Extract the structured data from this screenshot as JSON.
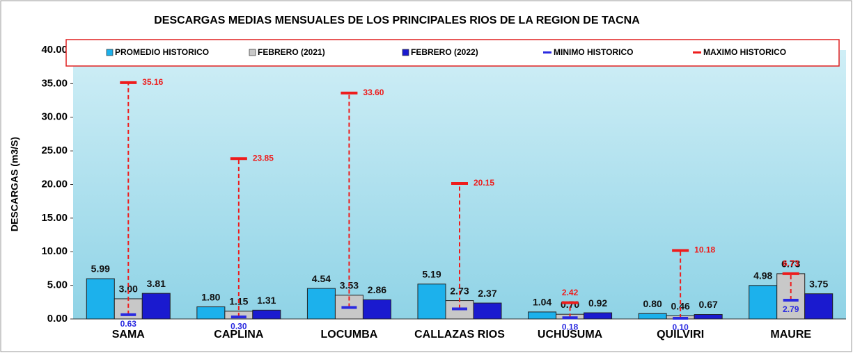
{
  "chart_data": {
    "type": "bar",
    "title": "DESCARGAS MEDIAS MENSUALES DE LOS PRINCIPALES RIOS DE LA REGION DE TACNA",
    "y_label": "DESCARGAS  (m3/S)",
    "categories": [
      "SAMA",
      "CAPLINA",
      "LOCUMBA",
      "CALLAZAS RIOS",
      "UCHUSUMA",
      "QUILVIRI",
      "MAURE"
    ],
    "series": [
      {
        "name": "PROMEDIO HISTORICO",
        "color": "#1cb1ec",
        "values": [
          5.99,
          1.8,
          4.54,
          5.19,
          1.04,
          0.8,
          4.98
        ],
        "value_labels": [
          "5.99",
          "1.80",
          "4.54",
          "5.19",
          "1.04",
          "0.80",
          "4.98"
        ]
      },
      {
        "name": "FEBRERO (2021)",
        "color": "#c8c8c8",
        "values": [
          3.0,
          1.15,
          3.53,
          2.73,
          0.7,
          0.46,
          6.73
        ],
        "value_labels": [
          "3.00",
          "1.15",
          "3.53",
          "2.73",
          "0.70",
          "0.46",
          "6.73"
        ]
      },
      {
        "name": "FEBRERO (2022)",
        "color": "#1a1acf",
        "values": [
          3.81,
          1.31,
          2.86,
          2.37,
          0.92,
          0.67,
          3.75
        ],
        "value_labels": [
          "3.81",
          "1.31",
          "2.86",
          "2.37",
          "0.92",
          "0.67",
          "3.75"
        ]
      },
      {
        "name": "MINIMO HISTORICO",
        "color": "#2a2ae0",
        "values": [
          0.63,
          0.3,
          1.7,
          1.5,
          0.18,
          0.1,
          2.79
        ],
        "value_labels": [
          "0.63",
          "0.30",
          null,
          null,
          "0.18",
          "0.10",
          "2.79"
        ]
      },
      {
        "name": "MAXIMO HISTORICO",
        "color": "#ee1c1c",
        "values": [
          35.16,
          23.85,
          33.6,
          20.15,
          2.42,
          10.18,
          6.73
        ],
        "value_labels": [
          "35.16",
          "23.85",
          "33.60",
          "20.15",
          "2.42",
          "10.18",
          "6.73"
        ]
      }
    ],
    "ylim": [
      0,
      40
    ],
    "yticks": [
      {
        "value": 0,
        "label": "0.00"
      },
      {
        "value": 5,
        "label": "5.00"
      },
      {
        "value": 10,
        "label": "10.00"
      },
      {
        "value": 15,
        "label": "15.00"
      },
      {
        "value": 20,
        "label": "20.00"
      },
      {
        "value": 25,
        "label": "25.00"
      },
      {
        "value": 30,
        "label": "30.00"
      },
      {
        "value": 35,
        "label": "35.00"
      },
      {
        "value": 40,
        "label": "40.00"
      }
    ],
    "legend": "top"
  }
}
